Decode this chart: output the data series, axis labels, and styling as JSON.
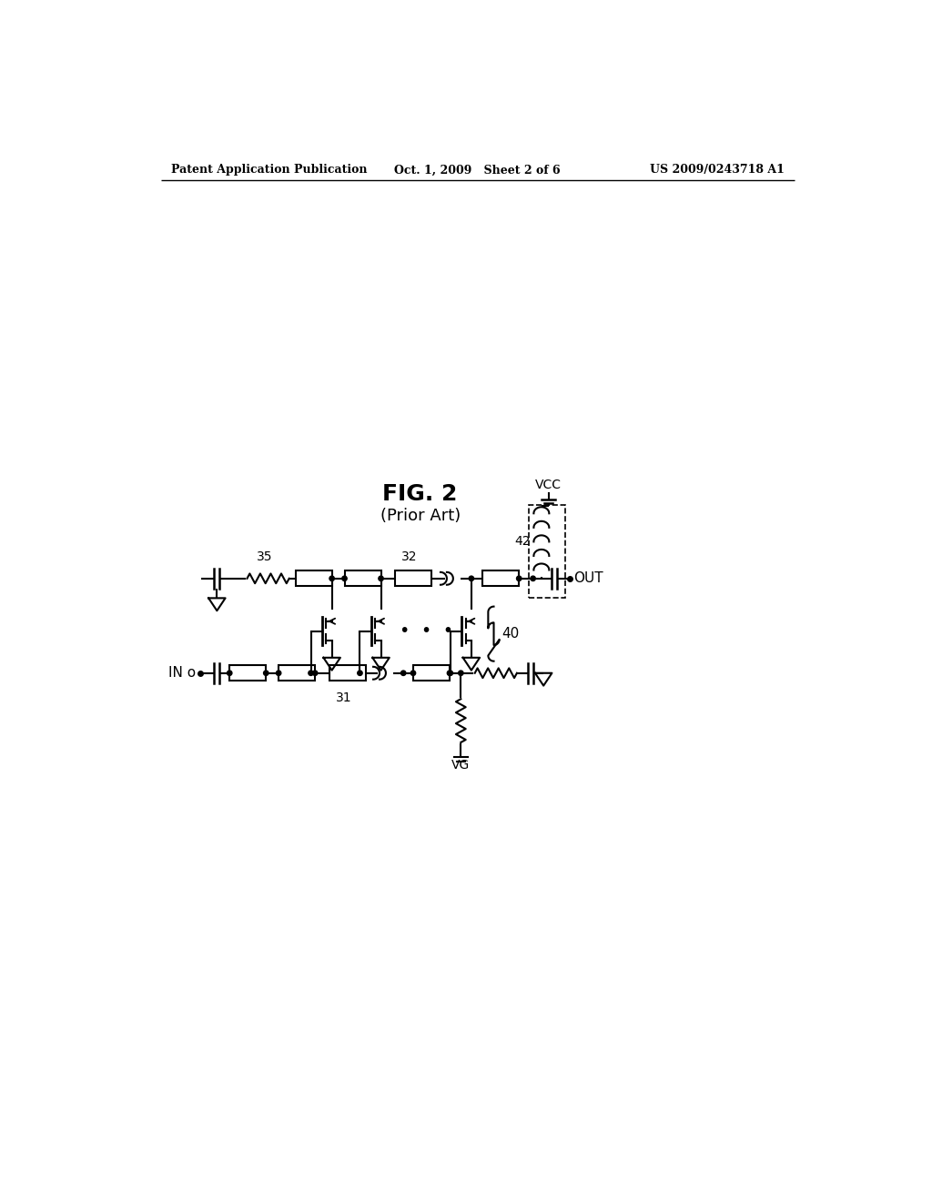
{
  "bg_color": "#ffffff",
  "title": "FIG. 2",
  "subtitle": "(Prior Art)",
  "header_left": "Patent Application Publication",
  "header_center": "Oct. 1, 2009   Sheet 2 of 6",
  "header_right": "US 2009/0243718 A1"
}
